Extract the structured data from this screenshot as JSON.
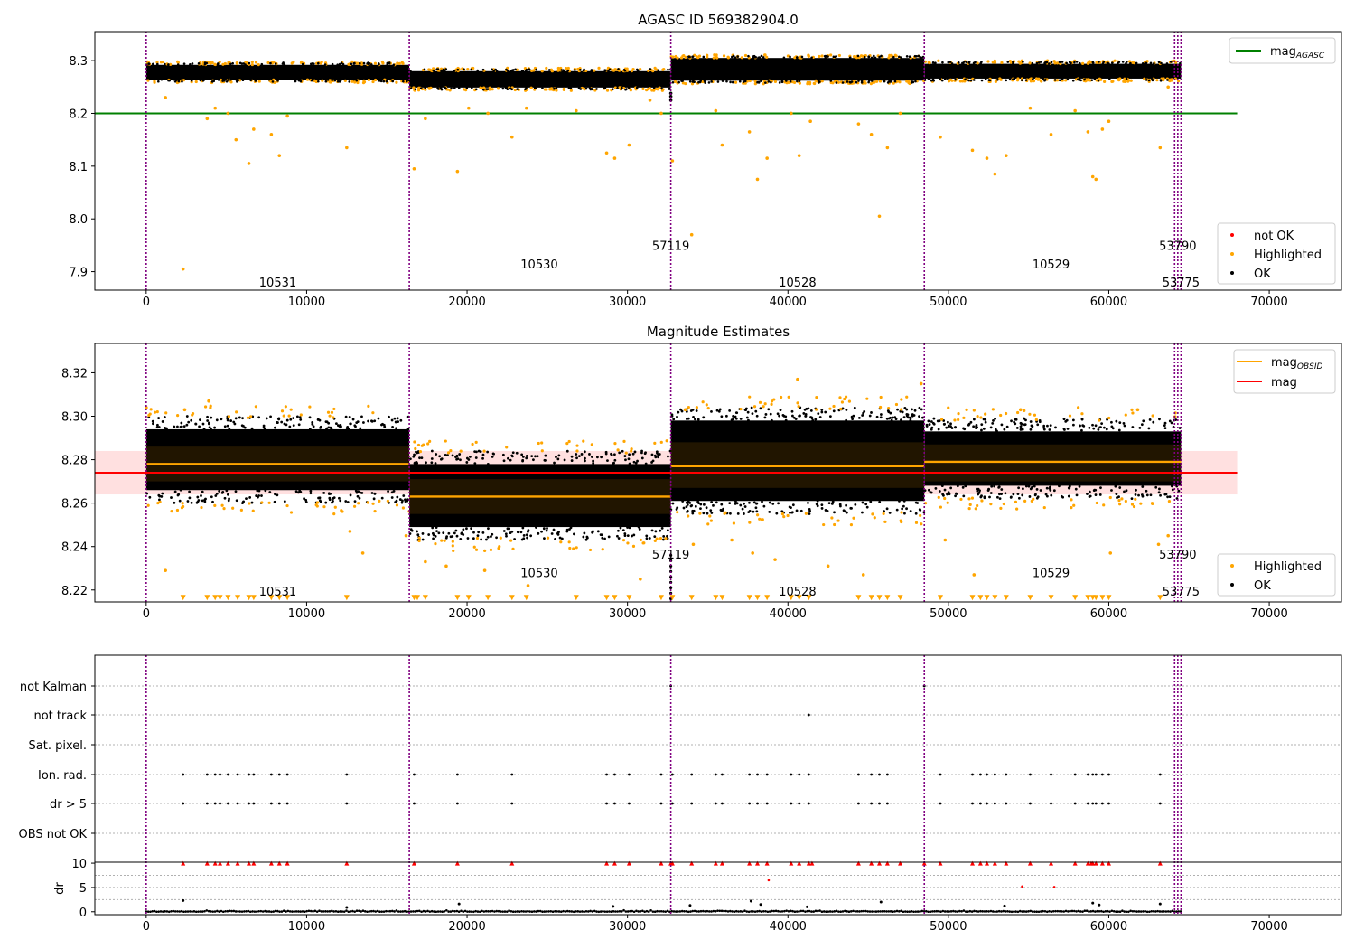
{
  "chart_data": [
    {
      "type": "scatter",
      "title": "AGASC ID 569382904.0",
      "xlim": [
        -3200,
        74500
      ],
      "ylim": [
        7.865,
        8.355
      ],
      "xticks": [
        0,
        10000,
        20000,
        30000,
        40000,
        50000,
        60000,
        70000
      ],
      "yticks": [
        {
          "v": 7.9,
          "label": "7.9"
        },
        {
          "v": 8.0,
          "label": "8.0"
        },
        {
          "v": 8.1,
          "label": "8.1"
        },
        {
          "v": 8.2,
          "label": "8.2"
        },
        {
          "v": 8.3,
          "label": "8.3"
        }
      ],
      "legend_top": {
        "position": "top-right",
        "entries": [
          {
            "label": "mag",
            "sub": "AGASC",
            "color": "#008000",
            "kind": "line"
          }
        ]
      },
      "legend_bottom": {
        "position": "bottom-right",
        "entries": [
          {
            "label": "not OK",
            "color": "#ff0000",
            "kind": "dot"
          },
          {
            "label": "Highlighted",
            "color": "#ffa500",
            "kind": "dot"
          },
          {
            "label": "OK",
            "color": "#000000",
            "kind": "dot"
          }
        ]
      },
      "hlines": [
        {
          "y": 8.2,
          "xmin": -3200,
          "xmax": 68000,
          "color": "#008000"
        }
      ],
      "bands": [
        {
          "x0": 0,
          "x1": 16400,
          "lo": 8.264,
          "hi": 8.292
        },
        {
          "x0": 16400,
          "x1": 32700,
          "lo": 8.249,
          "hi": 8.28
        },
        {
          "x0": 32700,
          "x1": 48500,
          "lo": 8.262,
          "hi": 8.305
        },
        {
          "x0": 48500,
          "x1": 64500,
          "lo": 8.266,
          "hi": 8.294
        }
      ],
      "obsid_labels": [
        {
          "text": "10531",
          "x": 8200,
          "y": 7.88
        },
        {
          "text": "10530",
          "x": 24500,
          "y": 7.915
        },
        {
          "text": "57119",
          "x": 32700,
          "y": 7.95
        },
        {
          "text": "10528",
          "x": 40600,
          "y": 7.88
        },
        {
          "text": "10529",
          "x": 56400,
          "y": 7.915
        },
        {
          "text": "53790",
          "x": 64300,
          "y": 7.95
        },
        {
          "text": "53775",
          "x": 64500,
          "y": 7.88
        }
      ],
      "outliers": [
        [
          1200,
          8.23
        ],
        [
          2300,
          7.905
        ],
        [
          3800,
          8.19
        ],
        [
          4300,
          8.21
        ],
        [
          5100,
          8.2
        ],
        [
          5600,
          8.15
        ],
        [
          6400,
          8.105
        ],
        [
          6700,
          8.17
        ],
        [
          7800,
          8.16
        ],
        [
          8300,
          8.12
        ],
        [
          8800,
          8.195
        ],
        [
          12500,
          8.135
        ],
        [
          16700,
          8.095
        ],
        [
          17400,
          8.19
        ],
        [
          19400,
          8.09
        ],
        [
          20100,
          8.21
        ],
        [
          21300,
          8.2
        ],
        [
          22800,
          8.155
        ],
        [
          23700,
          8.21
        ],
        [
          26800,
          8.205
        ],
        [
          28700,
          8.125
        ],
        [
          29200,
          8.115
        ],
        [
          30100,
          8.14
        ],
        [
          31400,
          8.225
        ],
        [
          32100,
          8.2
        ],
        [
          32800,
          8.11
        ],
        [
          34000,
          7.97
        ],
        [
          35500,
          8.205
        ],
        [
          35900,
          8.14
        ],
        [
          37600,
          8.165
        ],
        [
          38100,
          8.075
        ],
        [
          38700,
          8.115
        ],
        [
          40200,
          8.2
        ],
        [
          40700,
          8.12
        ],
        [
          41400,
          8.185
        ],
        [
          44400,
          8.18
        ],
        [
          45200,
          8.16
        ],
        [
          45700,
          8.005
        ],
        [
          46200,
          8.135
        ],
        [
          47000,
          8.2
        ],
        [
          49500,
          8.155
        ],
        [
          51500,
          8.13
        ],
        [
          52400,
          8.115
        ],
        [
          52900,
          8.085
        ],
        [
          53600,
          8.12
        ],
        [
          55100,
          8.21
        ],
        [
          56400,
          8.16
        ],
        [
          57900,
          8.205
        ],
        [
          58700,
          8.165
        ],
        [
          59000,
          8.08
        ],
        [
          59200,
          8.075
        ],
        [
          59600,
          8.17
        ],
        [
          60000,
          8.185
        ],
        [
          63200,
          8.135
        ],
        [
          63700,
          8.25
        ]
      ]
    },
    {
      "type": "scatter",
      "title": "Magnitude Estimates",
      "xlim": [
        -3200,
        74500
      ],
      "ylim": [
        8.2145,
        8.3335
      ],
      "xticks": [
        0,
        10000,
        20000,
        30000,
        40000,
        50000,
        60000,
        70000
      ],
      "yticks": [
        {
          "v": 8.22,
          "label": "8.22"
        },
        {
          "v": 8.24,
          "label": "8.24"
        },
        {
          "v": 8.26,
          "label": "8.26"
        },
        {
          "v": 8.28,
          "label": "8.28"
        },
        {
          "v": 8.3,
          "label": "8.30"
        },
        {
          "v": 8.32,
          "label": "8.32"
        }
      ],
      "legend_top": {
        "position": "top-right",
        "entries": [
          {
            "label": "mag",
            "sub": "OBSID",
            "color": "#ffa500",
            "kind": "line"
          },
          {
            "label": "mag",
            "sub": "",
            "color": "#ff0000",
            "kind": "line"
          }
        ]
      },
      "legend_bottom": {
        "position": "bottom-right",
        "entries": [
          {
            "label": "Highlighted",
            "color": "#ffa500",
            "kind": "dot"
          },
          {
            "label": "OK",
            "color": "#000000",
            "kind": "dot"
          }
        ]
      },
      "mag": {
        "value": 8.274,
        "lo": 8.264,
        "hi": 8.284,
        "xmin": -3200,
        "xmax": 68000
      },
      "segments": [
        {
          "x0": 0,
          "x1": 16400,
          "mean": 8.278,
          "lo": 8.262,
          "hi": 8.298,
          "blo": 8.27,
          "bhi": 8.286
        },
        {
          "x0": 16400,
          "x1": 32700,
          "mean": 8.263,
          "lo": 8.245,
          "hi": 8.282,
          "blo": 8.255,
          "bhi": 8.271
        },
        {
          "x0": 32700,
          "x1": 48500,
          "mean": 8.277,
          "lo": 8.257,
          "hi": 8.302,
          "blo": 8.267,
          "bhi": 8.288
        },
        {
          "x0": 48500,
          "x1": 64500,
          "mean": 8.279,
          "lo": 8.264,
          "hi": 8.297,
          "blo": 8.27,
          "bhi": 8.287
        }
      ],
      "obsid_labels": [
        {
          "text": "10531",
          "x": 8200,
          "y": 8.2195
        },
        {
          "text": "10530",
          "x": 24500,
          "y": 8.228
        },
        {
          "text": "57119",
          "x": 32700,
          "y": 8.2365
        },
        {
          "text": "10528",
          "x": 40600,
          "y": 8.2195
        },
        {
          "text": "10529",
          "x": 56400,
          "y": 8.228
        },
        {
          "text": "53790",
          "x": 64300,
          "y": 8.2365
        },
        {
          "text": "53775",
          "x": 64500,
          "y": 8.2195
        }
      ],
      "lower_markers": [
        2300,
        3800,
        4300,
        4600,
        5100,
        5700,
        6400,
        6700,
        7800,
        8300,
        8800,
        12500,
        16700,
        16900,
        17400,
        19400,
        20100,
        21300,
        22800,
        23700,
        26800,
        28700,
        29200,
        30100,
        32100,
        32800,
        34000,
        35500,
        35900,
        37600,
        38100,
        38700,
        40200,
        40700,
        41300,
        44400,
        45200,
        45700,
        46200,
        47000,
        49500,
        51500,
        52000,
        52400,
        52900,
        53600,
        55100,
        56400,
        57900,
        58700,
        59000,
        59200,
        59600,
        60000,
        63200
      ],
      "highlight_spikes": [
        [
          1200,
          8.229
        ],
        [
          3900,
          8.307
        ],
        [
          2400,
          8.303
        ],
        [
          12700,
          8.247
        ],
        [
          13500,
          8.237
        ],
        [
          16200,
          8.245
        ],
        [
          17400,
          8.233
        ],
        [
          18700,
          8.231
        ],
        [
          21100,
          8.229
        ],
        [
          23800,
          8.222
        ],
        [
          30800,
          8.225
        ],
        [
          33600,
          8.303
        ],
        [
          34100,
          8.241
        ],
        [
          36500,
          8.243
        ],
        [
          37800,
          8.237
        ],
        [
          39200,
          8.234
        ],
        [
          40600,
          8.317
        ],
        [
          42500,
          8.231
        ],
        [
          44700,
          8.227
        ],
        [
          48300,
          8.315
        ],
        [
          49800,
          8.243
        ],
        [
          51600,
          8.227
        ],
        [
          54500,
          8.303
        ],
        [
          60100,
          8.237
        ],
        [
          63100,
          8.241
        ],
        [
          63700,
          8.245
        ],
        [
          61800,
          8.303
        ]
      ]
    },
    {
      "type": "scatter",
      "title": "",
      "xlim": [
        -3200,
        74500
      ],
      "xticks": [
        0,
        10000,
        20000,
        30000,
        40000,
        50000,
        60000,
        70000
      ],
      "flags": [
        "not Kalman",
        "not track",
        "Sat. pixel.",
        "Ion. rad.",
        "dr > 5",
        "OBS not OK"
      ],
      "flag_points": {
        "not Kalman": [
          32700,
          48500
        ],
        "not track": [
          41300
        ],
        "Sat. pixel.": [],
        "Ion. rad.": [
          2300,
          3800,
          4300,
          4600,
          5100,
          5700,
          6400,
          6700,
          7800,
          8300,
          8800,
          12500,
          16700,
          19400,
          22800,
          28700,
          29200,
          30100,
          32100,
          32800,
          34000,
          35500,
          35900,
          37600,
          38100,
          38700,
          40200,
          40700,
          41300,
          44400,
          45200,
          45700,
          46200,
          49500,
          51500,
          52000,
          52400,
          52900,
          53600,
          55100,
          56400,
          57900,
          58700,
          59000,
          59200,
          59600,
          60000,
          63200
        ],
        "dr > 5": [
          2300,
          3800,
          4300,
          4600,
          5100,
          5700,
          6400,
          6700,
          7800,
          8300,
          8800,
          12500,
          16700,
          19400,
          22800,
          28700,
          29200,
          30100,
          32100,
          32800,
          34000,
          35500,
          35900,
          37600,
          38100,
          38700,
          40200,
          40700,
          41300,
          44400,
          45200,
          45700,
          46200,
          49500,
          51500,
          52000,
          52400,
          52900,
          53600,
          55100,
          56400,
          57900,
          58700,
          59000,
          59200,
          59600,
          60000,
          63200
        ],
        "OBS not OK": []
      },
      "dr": {
        "ylabel": "dr",
        "ylim": [
          -0.6,
          10.2
        ],
        "yticks": [
          {
            "v": 0,
            "label": "0"
          },
          {
            "v": 5,
            "label": "5"
          },
          {
            "v": 10,
            "label": "10"
          }
        ],
        "capped": [
          2300,
          3800,
          4300,
          4600,
          5100,
          5700,
          6400,
          6700,
          7800,
          8300,
          8800,
          12500,
          16700,
          19400,
          22800,
          28700,
          29200,
          30100,
          32100,
          32700,
          32800,
          34000,
          35500,
          35900,
          37600,
          38100,
          38700,
          40200,
          40700,
          41300,
          41500,
          44400,
          45200,
          45700,
          46200,
          47000,
          48500,
          49500,
          51500,
          52000,
          52400,
          52900,
          53600,
          55100,
          56400,
          57900,
          58700,
          58900,
          59000,
          59200,
          59600,
          60000,
          63200
        ],
        "mid_red": [
          [
            38800,
            6.5
          ],
          [
            54600,
            5.2
          ],
          [
            56600,
            5.1
          ]
        ],
        "black_spikes": [
          [
            2300,
            2.3
          ],
          [
            12500,
            0.9
          ],
          [
            19500,
            1.6
          ],
          [
            29100,
            1.1
          ],
          [
            33900,
            1.3
          ],
          [
            37700,
            2.2
          ],
          [
            38300,
            1.5
          ],
          [
            41200,
            1.0
          ],
          [
            45800,
            2.0
          ],
          [
            53500,
            1.2
          ],
          [
            59000,
            1.8
          ],
          [
            59400,
            1.4
          ],
          [
            63200,
            1.6
          ]
        ]
      }
    }
  ],
  "obsid_boundaries": [
    0,
    16400,
    32700,
    48500,
    64100,
    64300,
    64500
  ]
}
